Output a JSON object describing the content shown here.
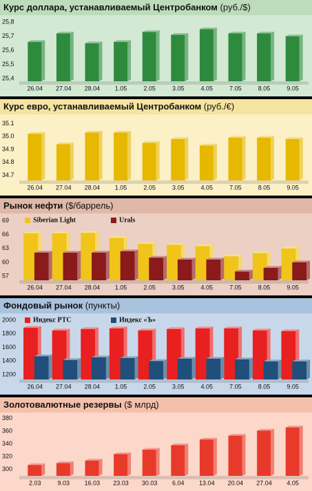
{
  "chart_data": [
    {
      "type": "bar",
      "title": "Курс доллара, устанавливаемый Центробанком",
      "unit": "(руб./$)",
      "categories": [
        "26.04",
        "27.04",
        "28.04",
        "1.05",
        "2.05",
        "3.05",
        "4.05",
        "7.05",
        "8.05",
        "9.05"
      ],
      "series": [
        {
          "color": "#2e8b3e",
          "values": [
            25.66,
            25.72,
            25.65,
            25.66,
            25.73,
            25.71,
            25.75,
            25.72,
            25.72,
            25.7
          ]
        }
      ],
      "ylim": [
        25.38,
        25.83
      ],
      "yticks": [
        {
          "value": 25.8,
          "label": "25,8"
        },
        {
          "value": 25.7,
          "label": "25,7"
        },
        {
          "value": 25.6,
          "label": "25,6"
        },
        {
          "value": 25.5,
          "label": "25,5"
        },
        {
          "value": 25.4,
          "label": "25,4"
        }
      ]
    },
    {
      "type": "bar",
      "title": "Курс евро, устанавливаемый Центробанком",
      "unit": "(руб./€)",
      "categories": [
        "26.04",
        "27.04",
        "28.04",
        "1.05",
        "2.05",
        "3.05",
        "4.05",
        "7.05",
        "8.05",
        "9.05"
      ],
      "series": [
        {
          "color": "#e6b800",
          "values": [
            35.02,
            34.94,
            35.03,
            35.03,
            34.95,
            34.98,
            34.93,
            34.99,
            34.99,
            34.98
          ]
        }
      ],
      "ylim": [
        34.66,
        35.15
      ],
      "yticks": [
        35.1,
        {
          "value": 35.0,
          "label": "35.0"
        },
        34.9,
        34.8,
        34.7
      ]
    },
    {
      "type": "bar",
      "title": "Рынок нефти",
      "unit": "($/баррель)",
      "categories": [
        "26.04",
        "27.04",
        "28.04",
        "1.05",
        "2.05",
        "3.05",
        "4.05",
        "7.05",
        "8.05",
        "9.05"
      ],
      "series": [
        {
          "name": "Siberian Light",
          "color": "#f0c419",
          "values": [
            66.3,
            66.3,
            66.4,
            65.3,
            64.0,
            63.8,
            63.5,
            61.3,
            62.0,
            63.0
          ]
        },
        {
          "name": "Urals",
          "color": "#8b1a1a",
          "values": [
            62.1,
            62.1,
            62.1,
            62.4,
            61.0,
            60.6,
            60.6,
            58.0,
            58.8,
            60.0
          ]
        }
      ],
      "ylim": [
        56.1,
        70
      ],
      "yticks": [
        69,
        66,
        63,
        60,
        57
      ]
    },
    {
      "type": "bar",
      "title": "Фондовый рынок",
      "unit": "(пункты)",
      "categories": [
        "26.04",
        "27.04",
        "28.04",
        "1.05",
        "2.05",
        "3.05",
        "4.05",
        "7.05",
        "8.05",
        "9.05"
      ],
      "series": [
        {
          "name": "Индекс РТС",
          "color": "#e82020",
          "values": [
            1890,
            1850,
            1870,
            1880,
            1850,
            1870,
            1880,
            1880,
            1850,
            1840
          ]
        },
        {
          "name": "Индекс «Ъ»",
          "color": "#1f4f7a",
          "values": [
            1470,
            1415,
            1455,
            1445,
            1400,
            1435,
            1435,
            1425,
            1395,
            1395
          ]
        }
      ],
      "ylim": [
        1130,
        2060
      ],
      "yticks": [
        2000,
        1800,
        1600,
        1400,
        1200
      ]
    },
    {
      "type": "bar",
      "title": "Золотовалютные резервы",
      "unit": "($ млрд)",
      "categories": [
        "2.03",
        "9.03",
        "16.03",
        "23.03",
        "30.03",
        "6.04",
        "13.04",
        "20.04",
        "27.04",
        "4.05"
      ],
      "series": [
        {
          "color": "#e83a2a",
          "values": [
            307,
            310,
            314,
            324,
            331,
            338,
            347,
            353,
            361,
            366
          ]
        }
      ],
      "ylim": [
        290,
        385
      ],
      "yticks": [
        380,
        360,
        340,
        320,
        300
      ]
    }
  ]
}
